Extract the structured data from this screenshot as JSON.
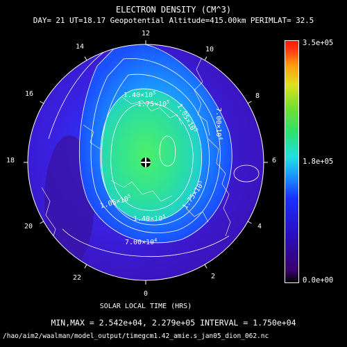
{
  "chart_data": {
    "type": "heatmap",
    "projection": "polar",
    "title": "ELECTRON DENSITY (CM^3)",
    "subtitle": "DAY= 21 UT=18.17 Geopotential Altitude=415.00km PERIMLAT= 32.5",
    "xlabel": "SOLAR LOCAL TIME (HRS)",
    "local_time_labels": [
      "0",
      "2",
      "4",
      "6",
      "8",
      "10",
      "12",
      "14",
      "16",
      "18",
      "20",
      "22"
    ],
    "colorbar": {
      "min_label": "0.0e+00",
      "mid_label": "1.8e+05",
      "max_label": "3.5e+05",
      "min": 0,
      "max": 350000
    },
    "contour_labels": [
      "1.40x10^5",
      "1.75x10^5",
      "1.05x10^5",
      "7.00x10^4",
      "1.05x10^5",
      "1.40x10^5",
      "1.75x10^5",
      "7.00x10^4"
    ],
    "minmax_text": "MIN,MAX =  2.542e+04, 2.279e+05 INTERVAL =  1.750e+04",
    "min": 25420,
    "max": 227900,
    "interval": 17500,
    "file_path": "/hao/aim2/waalman/model_output/timegcm1.42_amie.s_jan05_dion_062.nc"
  }
}
